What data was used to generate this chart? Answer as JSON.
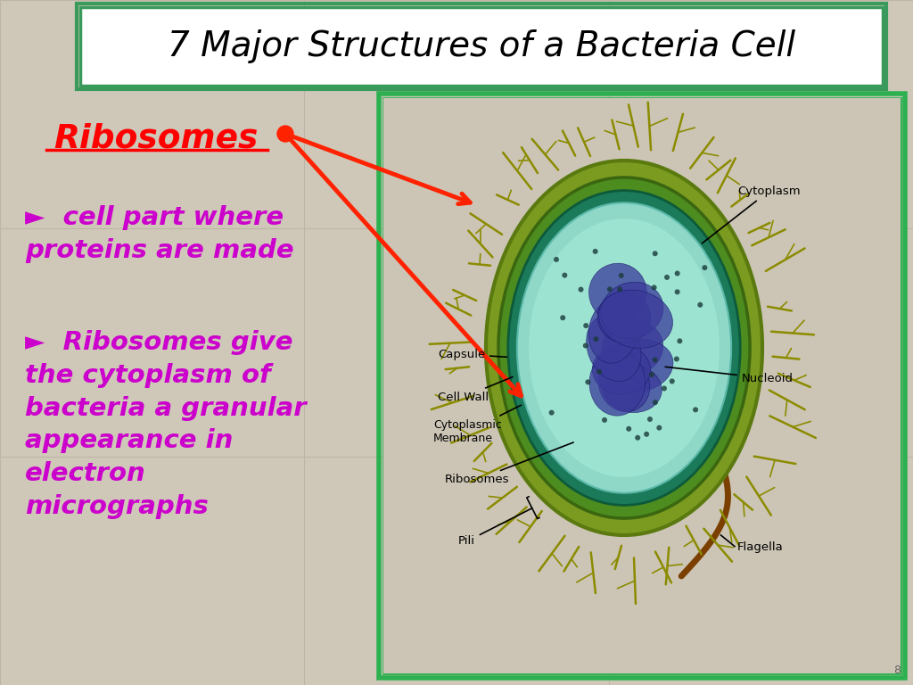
{
  "title": "7 Major Structures of a Bacteria Cell",
  "title_fontsize": 28,
  "background_color": "#cfc8b8",
  "title_box_facecolor": "#ffffff",
  "title_border_color1": "#3a9a5c",
  "title_border_color2": "#5cb87a",
  "label_heading": "Ribosomes",
  "label_heading_color": "#ff0000",
  "bullet1": "►  cell part where\nproteins are made",
  "bullet2": "►  Ribosomes give\nthe cytoplasm of\nbacteria a granular\nappearance in\nelectron\nmicrographs",
  "bullet_color": "#cc00cc",
  "bullet_fontsize": 21,
  "arrow_color": "#ff2200",
  "image_border_color": "#2db050",
  "grid_color": "#bdb5a5",
  "slide_number": "8"
}
